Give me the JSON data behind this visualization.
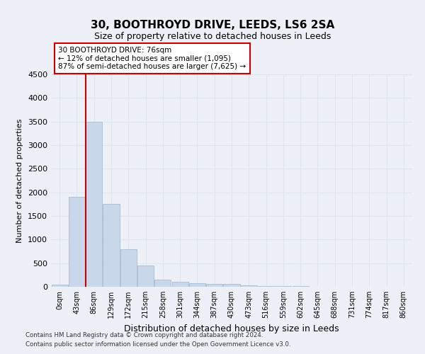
{
  "title_line1": "30, BOOTHROYD DRIVE, LEEDS, LS6 2SA",
  "title_line2": "Size of property relative to detached houses in Leeds",
  "xlabel": "Distribution of detached houses by size in Leeds",
  "ylabel": "Number of detached properties",
  "bar_labels": [
    "0sqm",
    "43sqm",
    "86sqm",
    "129sqm",
    "172sqm",
    "215sqm",
    "258sqm",
    "301sqm",
    "344sqm",
    "387sqm",
    "430sqm",
    "473sqm",
    "516sqm",
    "559sqm",
    "602sqm",
    "645sqm",
    "688sqm",
    "731sqm",
    "774sqm",
    "817sqm",
    "860sqm"
  ],
  "bar_values": [
    50,
    1900,
    3500,
    1750,
    800,
    450,
    150,
    100,
    75,
    65,
    55,
    30,
    15,
    10,
    8,
    5,
    5,
    3,
    2,
    2,
    1
  ],
  "bar_color": "#c8d8ea",
  "bar_edge_color": "#aabcce",
  "vline_pos": 1.5,
  "vline_color": "#cc0000",
  "ylim_max": 4500,
  "yticks": [
    0,
    500,
    1000,
    1500,
    2000,
    2500,
    3000,
    3500,
    4000,
    4500
  ],
  "annotation_line1": "30 BOOTHROYD DRIVE: 76sqm",
  "annotation_line2": "← 12% of detached houses are smaller (1,095)",
  "annotation_line3": "87% of semi-detached houses are larger (7,625) →",
  "annotation_box_facecolor": "#ffffff",
  "annotation_box_edgecolor": "#cc0000",
  "footer_line1": "Contains HM Land Registry data © Crown copyright and database right 2024.",
  "footer_line2": "Contains public sector information licensed under the Open Government Licence v3.0.",
  "fig_facecolor": "#edf1f7",
  "grid_color": "#dde5ef",
  "title1_fontsize": 11,
  "title2_fontsize": 9
}
